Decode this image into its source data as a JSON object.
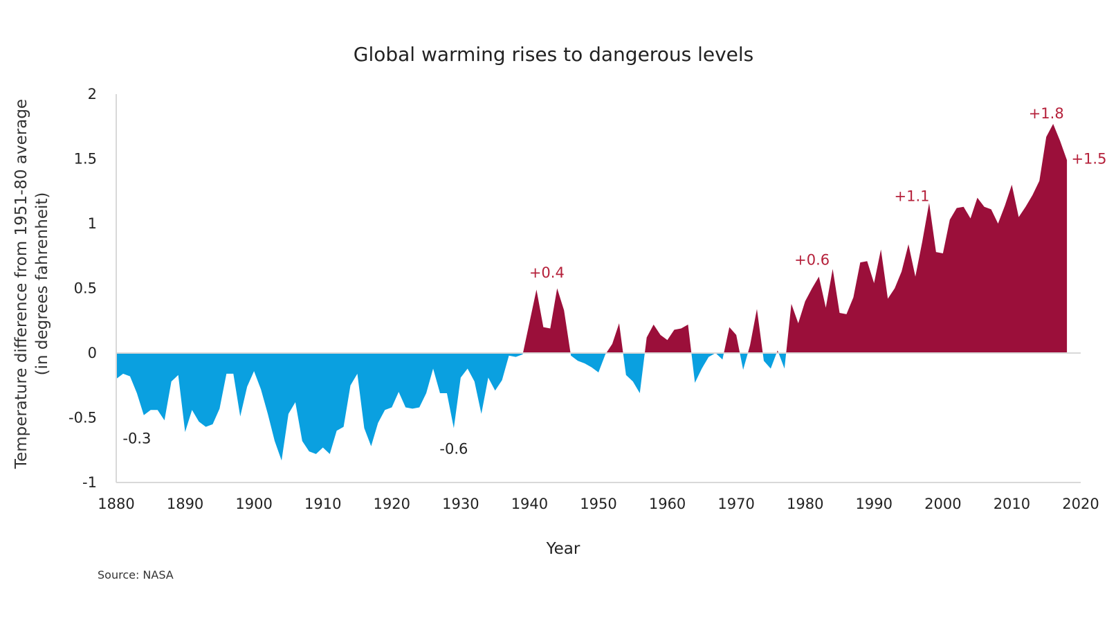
{
  "chart_data": {
    "type": "area",
    "title": "Global warming rises to dangerous levels",
    "xlabel": "Year",
    "ylabel_lines": [
      "Temperature difference from 1951-80 average",
      "(in degrees fahrenheit)"
    ],
    "source": "Source: NASA",
    "xlim": [
      1880,
      2020
    ],
    "ylim": [
      -1,
      2
    ],
    "xticks": [
      "1880",
      "1890",
      "1900",
      "1910",
      "1920",
      "1930",
      "1940",
      "1950",
      "1960",
      "1970",
      "1980",
      "1990",
      "2000",
      "2010",
      "2020"
    ],
    "yticks": [
      "2",
      "1.5",
      "1",
      "0.5",
      "0",
      "-0.5",
      "-1"
    ],
    "grid": false,
    "colors": {
      "positive": "#9b0f3a",
      "negative": "#0aa0e0",
      "annotation_positive": "#b5203a",
      "annotation_negative": "#222222",
      "axis": "#d8d8d8"
    },
    "series": [
      {
        "x": [
          1880,
          1881,
          1882,
          1883,
          1884,
          1885,
          1886,
          1887,
          1888,
          1889,
          1890,
          1891,
          1892,
          1893,
          1894,
          1895,
          1896,
          1897,
          1898,
          1899,
          1900,
          1901,
          1902,
          1903,
          1904,
          1905,
          1906,
          1907,
          1908,
          1909,
          1910,
          1911,
          1912,
          1913,
          1914,
          1915,
          1916,
          1917,
          1918,
          1919,
          1920,
          1921,
          1922,
          1923,
          1924,
          1925,
          1926,
          1927,
          1928,
          1929,
          1930,
          1931,
          1932,
          1933,
          1934,
          1935,
          1936,
          1937,
          1938,
          1939,
          1940,
          1941,
          1942,
          1943,
          1944,
          1945,
          1946,
          1947,
          1948,
          1949,
          1950,
          1951,
          1952,
          1953,
          1954,
          1955,
          1956,
          1957,
          1958,
          1959,
          1960,
          1961,
          1962,
          1963,
          1964,
          1965,
          1966,
          1967,
          1968,
          1969,
          1970,
          1971,
          1972,
          1973,
          1974,
          1975,
          1976,
          1977,
          1978,
          1979,
          1980,
          1981,
          1982,
          1983,
          1984,
          1985,
          1986,
          1987,
          1988,
          1989,
          1990,
          1991,
          1992,
          1993,
          1994,
          1995,
          1996,
          1997,
          1998,
          1999,
          2000,
          2001,
          2002,
          2003,
          2004,
          2005,
          2006,
          2007,
          2008,
          2009,
          2010,
          2011,
          2012,
          2013,
          2014,
          2015,
          2016,
          2017,
          2018
        ],
        "values": [
          -0.2,
          -0.16,
          -0.18,
          -0.31,
          -0.48,
          -0.44,
          -0.44,
          -0.52,
          -0.22,
          -0.17,
          -0.61,
          -0.44,
          -0.53,
          -0.57,
          -0.55,
          -0.43,
          -0.16,
          -0.16,
          -0.49,
          -0.26,
          -0.14,
          -0.28,
          -0.47,
          -0.68,
          -0.83,
          -0.47,
          -0.38,
          -0.68,
          -0.76,
          -0.78,
          -0.73,
          -0.78,
          -0.6,
          -0.57,
          -0.25,
          -0.16,
          -0.58,
          -0.72,
          -0.54,
          -0.44,
          -0.42,
          -0.3,
          -0.42,
          -0.43,
          -0.42,
          -0.31,
          -0.12,
          -0.31,
          -0.31,
          -0.58,
          -0.19,
          -0.12,
          -0.22,
          -0.47,
          -0.19,
          -0.29,
          -0.21,
          -0.02,
          -0.03,
          -0.01,
          0.24,
          0.49,
          0.2,
          0.19,
          0.5,
          0.33,
          -0.02,
          -0.06,
          -0.08,
          -0.11,
          -0.15,
          -0.01,
          0.07,
          0.23,
          -0.17,
          -0.22,
          -0.31,
          0.12,
          0.22,
          0.14,
          0.1,
          0.18,
          0.19,
          0.22,
          -0.23,
          -0.12,
          -0.03,
          0.0,
          -0.05,
          0.2,
          0.14,
          -0.13,
          0.06,
          0.34,
          -0.06,
          -0.12,
          0.02,
          -0.12,
          0.38,
          0.23,
          0.4,
          0.5,
          0.59,
          0.35,
          0.65,
          0.31,
          0.3,
          0.43,
          0.7,
          0.71,
          0.54,
          0.8,
          0.42,
          0.5,
          0.63,
          0.84,
          0.59,
          0.86,
          1.16,
          0.78,
          0.77,
          1.03,
          1.12,
          1.13,
          1.04,
          1.2,
          1.13,
          1.11,
          1.0,
          1.14,
          1.3,
          1.05,
          1.13,
          1.22,
          1.33,
          1.67,
          1.77,
          1.64,
          1.49
        ]
      }
    ],
    "annotations": [
      {
        "text": "-0.3",
        "x": 1883,
        "y": -0.66,
        "sign": "negative"
      },
      {
        "text": "-0.6",
        "x": 1929,
        "y": -0.74,
        "sign": "negative"
      },
      {
        "text": "+0.4",
        "x": 1942.5,
        "y": 0.62,
        "sign": "positive"
      },
      {
        "text": "+0.6",
        "x": 1981,
        "y": 0.72,
        "sign": "positive"
      },
      {
        "text": "+1.1",
        "x": 1995.5,
        "y": 1.21,
        "sign": "positive"
      },
      {
        "text": "+1.8",
        "x": 2015,
        "y": 1.85,
        "sign": "positive"
      },
      {
        "text": "+1.5",
        "x": 2021.2,
        "y": 1.5,
        "sign": "positive"
      }
    ]
  }
}
